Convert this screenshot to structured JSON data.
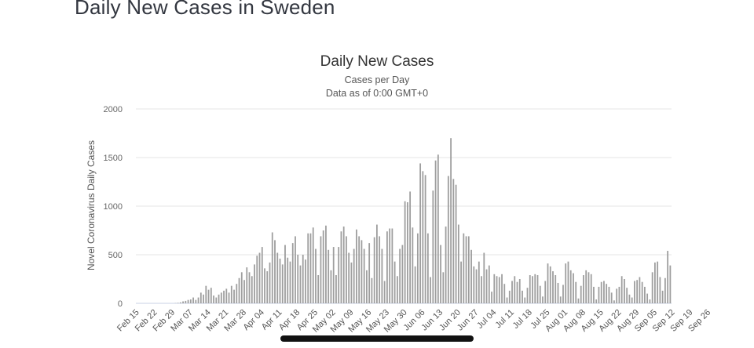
{
  "page": {
    "title": "Daily New Cases in Sweden"
  },
  "chart_data": {
    "type": "bar",
    "title": "Daily New Cases",
    "subtitle_lines": [
      "Cases per Day",
      "Data as of 0:00 GMT+0"
    ],
    "ylabel": "Novel Coronavirus Daily Cases",
    "xlabel": "",
    "ylim": [
      0,
      2000
    ],
    "yticks": [
      0,
      500,
      1000,
      1500,
      2000
    ],
    "grid": true,
    "legend": "none",
    "bar_color": "#9e9e9e",
    "x_start": "Feb 15",
    "x_tick_labels": [
      "Feb 15",
      "Feb 22",
      "Feb 29",
      "Mar 07",
      "Mar 14",
      "Mar 21",
      "Mar 28",
      "Apr 04",
      "Apr 11",
      "Apr 18",
      "Apr 25",
      "May 02",
      "May 09",
      "May 16",
      "May 23",
      "May 30",
      "Jun 06",
      "Jun 13",
      "Jun 20",
      "Jun 27",
      "Jul 04",
      "Jul 11",
      "Jul 18",
      "Jul 25",
      "Aug 01",
      "Aug 08",
      "Aug 15",
      "Aug 22",
      "Aug 29",
      "Sep 05",
      "Sep 12",
      "Sep 19",
      "Sep 26"
    ],
    "values": [
      0,
      0,
      0,
      0,
      0,
      0,
      0,
      0,
      0,
      0,
      0,
      0,
      0,
      0,
      0,
      2,
      5,
      10,
      20,
      25,
      35,
      40,
      60,
      35,
      60,
      110,
      90,
      180,
      140,
      160,
      80,
      60,
      90,
      110,
      130,
      150,
      110,
      180,
      140,
      200,
      260,
      320,
      240,
      370,
      320,
      280,
      400,
      490,
      520,
      580,
      360,
      330,
      420,
      730,
      650,
      520,
      460,
      400,
      600,
      470,
      430,
      620,
      690,
      500,
      390,
      500,
      450,
      720,
      720,
      780,
      560,
      290,
      690,
      750,
      800,
      550,
      340,
      580,
      290,
      580,
      740,
      790,
      690,
      520,
      420,
      560,
      760,
      690,
      650,
      560,
      340,
      620,
      260,
      680,
      810,
      690,
      560,
      230,
      740,
      770,
      770,
      430,
      280,
      560,
      600,
      1050,
      1040,
      1150,
      780,
      380,
      720,
      1440,
      1360,
      1320,
      720,
      270,
      1160,
      1470,
      1530,
      600,
      320,
      790,
      1310,
      1700,
      1280,
      1220,
      810,
      430,
      720,
      690,
      690,
      550,
      380,
      350,
      430,
      280,
      520,
      350,
      390,
      120,
      300,
      280,
      270,
      300,
      200,
      60,
      130,
      230,
      280,
      220,
      250,
      130,
      60,
      160,
      290,
      280,
      300,
      290,
      180,
      70,
      230,
      410,
      380,
      330,
      290,
      210,
      70,
      190,
      410,
      430,
      340,
      310,
      220,
      50,
      180,
      290,
      340,
      320,
      300,
      170,
      40,
      170,
      220,
      230,
      200,
      170,
      110,
      30,
      150,
      170,
      280,
      250,
      160,
      90,
      60,
      230,
      240,
      270,
      220,
      170,
      100,
      40,
      320,
      420,
      430,
      270,
      130,
      260,
      540,
      390
    ]
  }
}
